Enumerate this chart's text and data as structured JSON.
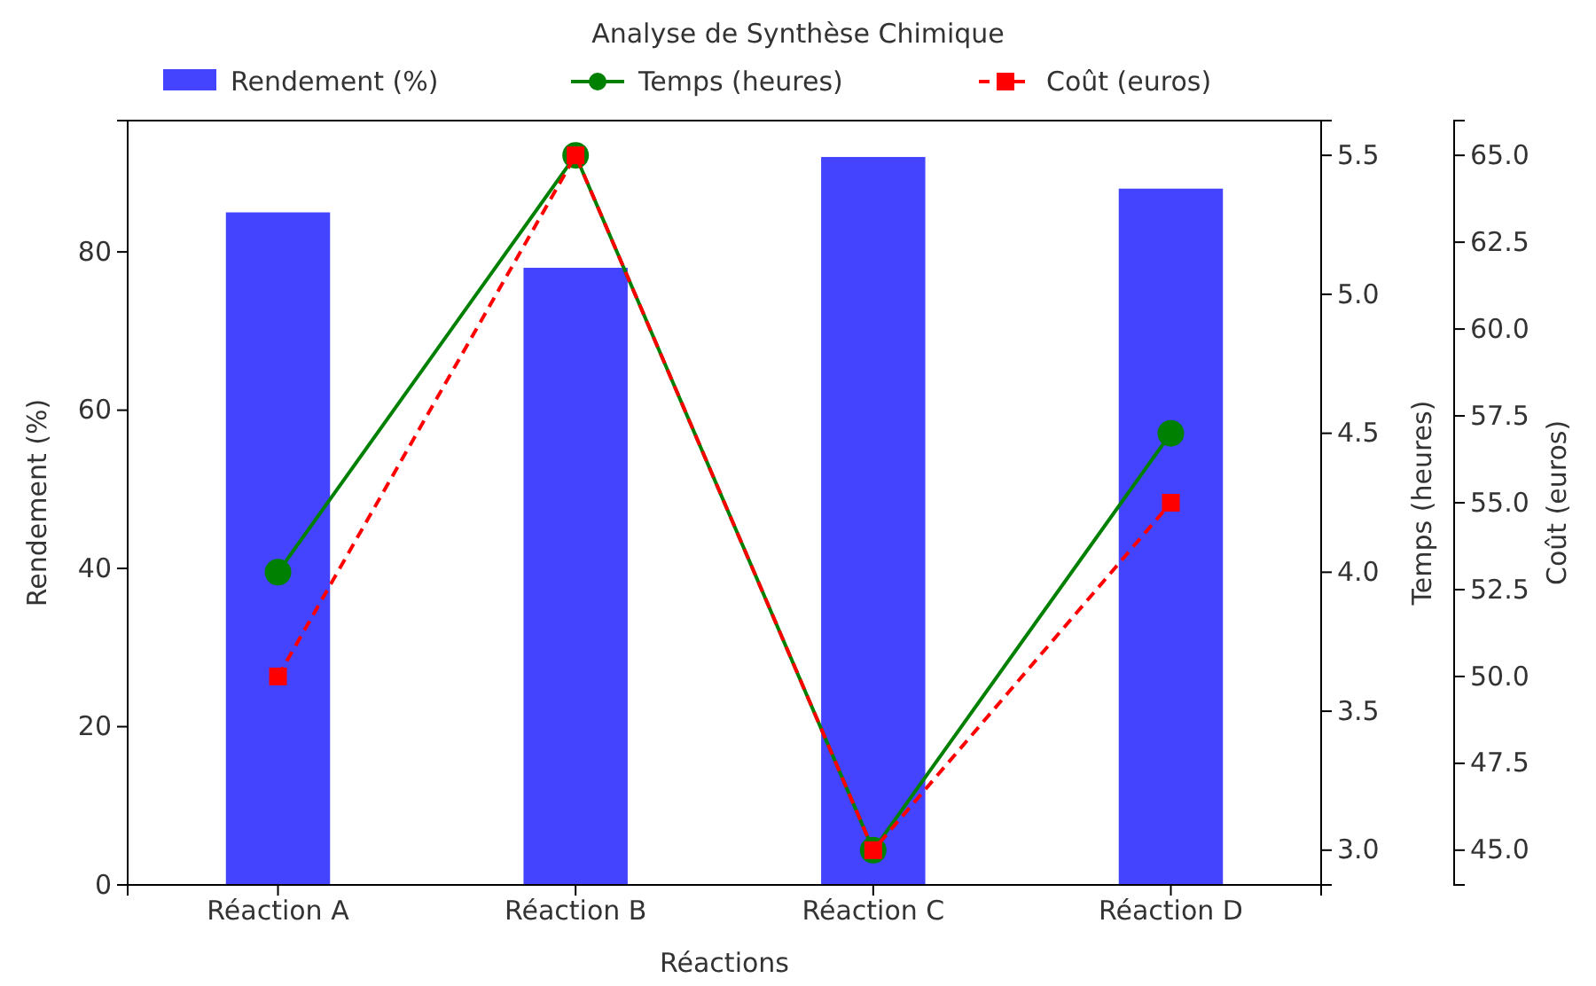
{
  "chart_data": {
    "type": "bar",
    "title": "Analyse de Synthèse Chimique",
    "xlabel": "Réactions",
    "ylabel": "Rendement (%)",
    "y2label": "Temps (heures)",
    "y3label": "Coût (euros)",
    "categories": [
      "Réaction A",
      "Réaction B",
      "Réaction C",
      "Réaction D"
    ],
    "series": [
      {
        "name": "Rendement (%)",
        "color": "#4444ff",
        "values": [
          85,
          78,
          92,
          88
        ]
      },
      {
        "name": "Temps (heures)",
        "type": "line",
        "color": "#008000",
        "values": [
          4.0,
          5.5,
          3.0,
          4.5
        ],
        "axis": "y2",
        "marker": "circle",
        "line_style": "solid"
      },
      {
        "name": "Coût (euros)",
        "type": "line",
        "color": "#ff0000",
        "values": [
          50,
          65,
          45,
          55
        ],
        "axis": "y3",
        "marker": "square",
        "line_style": "dashed"
      }
    ],
    "ylim": [
      0,
      96.6
    ],
    "yticks": [
      0,
      20,
      40,
      60,
      80
    ],
    "y2lim": [
      2.875,
      5.625
    ],
    "y2ticks": [
      {
        "value": 3,
        "label": "3.0"
      },
      {
        "value": 3.5,
        "label": "3.5"
      },
      {
        "value": 4,
        "label": "4.0"
      },
      {
        "value": 4.5,
        "label": "4.5"
      },
      {
        "value": 5,
        "label": "5.0"
      },
      {
        "value": 5.5,
        "label": "5.5"
      }
    ],
    "y3lim": [
      44,
      66
    ],
    "y3ticks": [
      {
        "value": 45,
        "label": "45.0"
      },
      {
        "value": 47.5,
        "label": "47.5"
      },
      {
        "value": 50,
        "label": "50.0"
      },
      {
        "value": 52.5,
        "label": "52.5"
      },
      {
        "value": 55,
        "label": "55.0"
      },
      {
        "value": 57.5,
        "label": "57.5"
      },
      {
        "value": 60,
        "label": "60.0"
      },
      {
        "value": 62.5,
        "label": "62.5"
      },
      {
        "value": 65,
        "label": "65.0"
      }
    ],
    "legend": "top",
    "grid": false
  }
}
